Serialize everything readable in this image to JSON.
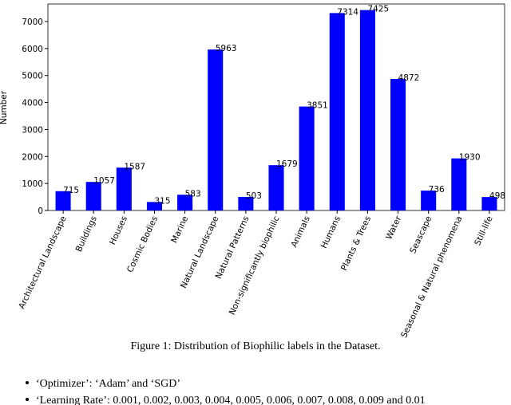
{
  "chart_data": {
    "type": "bar",
    "y_label": "Number",
    "categories": [
      "Architectural Landscape",
      "Buildings",
      "Houses",
      "Cosmic Bodies",
      "Marine",
      "Natural Landscape",
      "Natural Patterns",
      "Non-significantly biophilic",
      "Animals",
      "Humans",
      "Plants & Trees",
      "Water",
      "Seascape",
      "Seasonal & Natural phenomena",
      "Still-life"
    ],
    "values": [
      715,
      1057,
      1587,
      315,
      583,
      5963,
      503,
      1679,
      3851,
      7314,
      7425,
      4872,
      736,
      1930,
      498
    ],
    "color": "#0000ff",
    "ylim": [
      0,
      7650
    ],
    "yticks": [
      0,
      1000,
      2000,
      3000,
      4000,
      5000,
      6000,
      7000
    ],
    "grid": false
  },
  "caption": "Figure 1: Distribution of Biophilic labels in the Dataset.",
  "bullets": [
    "‘Optimizer’: ‘Adam’ and ‘SGD’",
    "‘Learning Rate’: 0.001, 0.002, 0.003, 0.004, 0.005, 0.006, 0.007, 0.008, 0.009 and 0.01"
  ]
}
